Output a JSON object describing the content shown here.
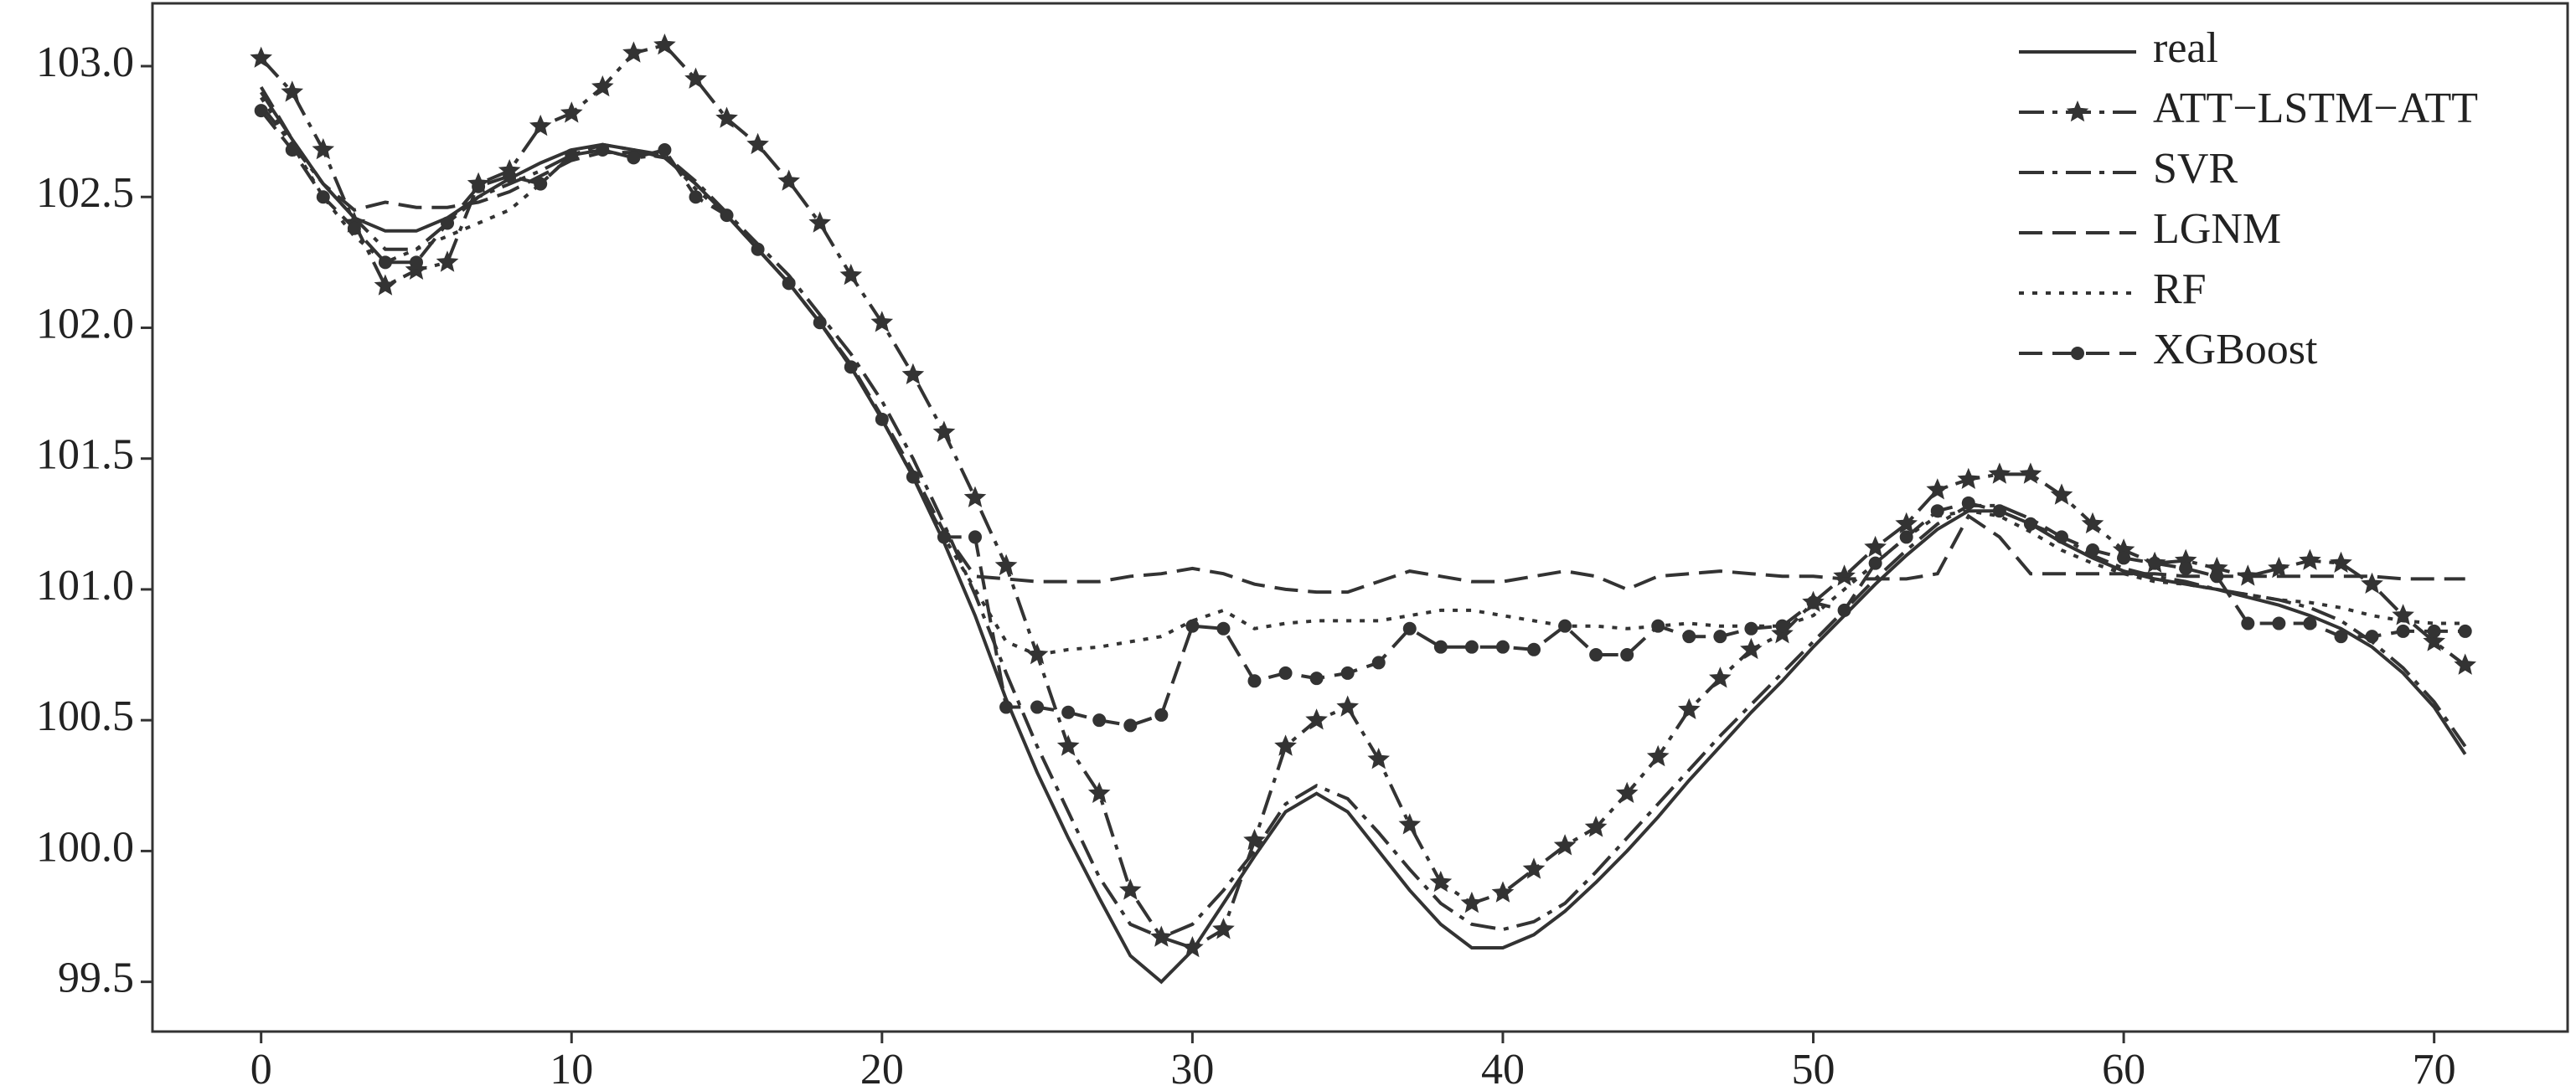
{
  "chart_data": {
    "type": "line",
    "x": [
      0,
      1,
      2,
      3,
      4,
      5,
      6,
      7,
      8,
      9,
      10,
      11,
      12,
      13,
      14,
      15,
      16,
      17,
      18,
      19,
      20,
      21,
      22,
      23,
      24,
      25,
      26,
      27,
      28,
      29,
      30,
      31,
      32,
      33,
      34,
      35,
      36,
      37,
      38,
      39,
      40,
      41,
      42,
      43,
      44,
      45,
      46,
      47,
      48,
      49,
      50,
      51,
      52,
      53,
      54,
      55,
      56,
      57,
      58,
      59,
      60,
      61,
      62,
      63,
      64,
      65,
      66,
      67,
      68,
      69,
      70,
      71
    ],
    "xlim": [
      -3.5,
      74.3
    ],
    "ylim": [
      99.31,
      103.24
    ],
    "xticks": [
      0,
      10,
      20,
      30,
      40,
      50,
      60,
      70
    ],
    "yticks": [
      99.5,
      {
        "value": 100,
        "label": "100.0"
      },
      100.5,
      {
        "value": 101,
        "label": "101.0"
      },
      101.5,
      {
        "value": 102,
        "label": "102.0"
      },
      102.5,
      {
        "value": 103,
        "label": "103.0"
      }
    ],
    "legend": "upper right",
    "series": [
      {
        "name": "real",
        "color": "#333333",
        "dash": "solid",
        "marker": "none",
        "values": [
          102.9,
          102.72,
          102.55,
          102.42,
          102.37,
          102.37,
          102.42,
          102.5,
          102.57,
          102.63,
          102.68,
          102.7,
          102.68,
          102.65,
          102.55,
          102.43,
          102.3,
          102.17,
          102.02,
          101.85,
          101.65,
          101.43,
          101.18,
          100.9,
          100.58,
          100.3,
          100.05,
          99.82,
          99.6,
          99.5,
          99.62,
          99.8,
          99.98,
          100.15,
          100.22,
          100.15,
          100.0,
          99.85,
          99.72,
          99.63,
          99.63,
          99.68,
          99.77,
          99.88,
          100.0,
          100.13,
          100.27,
          100.4,
          100.53,
          100.65,
          100.78,
          100.9,
          101.02,
          101.13,
          101.23,
          101.3,
          101.3,
          101.25,
          101.18,
          101.12,
          101.07,
          101.04,
          101.02,
          101.0,
          100.97,
          100.94,
          100.9,
          100.85,
          100.78,
          100.68,
          100.55,
          100.37
        ]
      },
      {
        "name": "ATT−LSTM−ATT",
        "color": "#333333",
        "dash": "dashdot",
        "marker": "star",
        "values": [
          103.03,
          102.9,
          102.68,
          102.4,
          102.16,
          102.22,
          102.25,
          102.55,
          102.6,
          102.77,
          102.82,
          102.92,
          103.05,
          103.08,
          102.95,
          102.8,
          102.7,
          102.56,
          102.4,
          102.2,
          102.02,
          101.82,
          101.6,
          101.35,
          101.09,
          100.75,
          100.4,
          100.22,
          99.85,
          99.67,
          99.63,
          99.7,
          100.04,
          100.4,
          100.5,
          100.55,
          100.35,
          100.1,
          99.88,
          99.8,
          99.84,
          99.93,
          100.02,
          100.09,
          100.22,
          100.36,
          100.54,
          100.66,
          100.77,
          100.83,
          100.95,
          101.05,
          101.16,
          101.25,
          101.38,
          101.42,
          101.44,
          101.44,
          101.36,
          101.25,
          101.15,
          101.1,
          101.11,
          101.08,
          101.05,
          101.08,
          101.11,
          101.1,
          101.02,
          100.9,
          100.8,
          100.71
        ]
      },
      {
        "name": "SVR",
        "color": "#333333",
        "dash": "dashdot",
        "marker": "none",
        "values": [
          102.85,
          102.7,
          102.55,
          102.42,
          102.3,
          102.3,
          102.4,
          102.5,
          102.55,
          102.6,
          102.66,
          102.7,
          102.68,
          102.66,
          102.56,
          102.44,
          102.32,
          102.2,
          102.05,
          101.9,
          101.72,
          101.5,
          101.25,
          100.98,
          100.68,
          100.4,
          100.15,
          99.9,
          99.72,
          99.67,
          99.72,
          99.85,
          100.0,
          100.18,
          100.25,
          100.2,
          100.07,
          99.93,
          99.8,
          99.72,
          99.7,
          99.73,
          99.8,
          99.92,
          100.05,
          100.18,
          100.31,
          100.44,
          100.56,
          100.68,
          100.8,
          100.92,
          101.04,
          101.15,
          101.25,
          101.32,
          101.32,
          101.27,
          101.2,
          101.13,
          101.08,
          101.05,
          101.03,
          101.0,
          100.98,
          100.96,
          100.93,
          100.88,
          100.8,
          100.7,
          100.57,
          100.4
        ]
      },
      {
        "name": "LGNM",
        "color": "#333333",
        "dash": "dashed",
        "marker": "none",
        "values": [
          102.92,
          102.72,
          102.55,
          102.45,
          102.48,
          102.46,
          102.46,
          102.48,
          102.52,
          102.58,
          102.64,
          102.67,
          102.67,
          102.65,
          102.55,
          102.43,
          102.3,
          102.17,
          102.02,
          101.86,
          101.66,
          101.45,
          101.22,
          101.05,
          101.04,
          101.03,
          101.03,
          101.03,
          101.05,
          101.06,
          101.08,
          101.06,
          101.02,
          101.0,
          100.99,
          100.99,
          101.03,
          101.07,
          101.05,
          101.03,
          101.03,
          101.05,
          101.07,
          101.05,
          101.0,
          101.05,
          101.06,
          101.07,
          101.06,
          101.05,
          101.05,
          101.04,
          101.04,
          101.04,
          101.06,
          101.28,
          101.2,
          101.06,
          101.06,
          101.06,
          101.06,
          101.06,
          101.05,
          101.05,
          101.05,
          101.05,
          101.05,
          101.05,
          101.05,
          101.04,
          101.04,
          101.04
        ]
      },
      {
        "name": "RF",
        "color": "#333333",
        "dash": "dotted",
        "marker": "none",
        "values": [
          102.88,
          102.7,
          102.5,
          102.35,
          102.25,
          102.3,
          102.35,
          102.4,
          102.45,
          102.55,
          102.66,
          102.68,
          102.65,
          102.66,
          102.53,
          102.43,
          102.3,
          102.17,
          102.02,
          101.85,
          101.65,
          101.43,
          101.2,
          101.0,
          100.8,
          100.75,
          100.77,
          100.78,
          100.8,
          100.82,
          100.88,
          100.92,
          100.85,
          100.87,
          100.88,
          100.88,
          100.88,
          100.9,
          100.92,
          100.92,
          100.9,
          100.88,
          100.86,
          100.86,
          100.85,
          100.86,
          100.87,
          100.86,
          100.86,
          100.86,
          100.9,
          101.0,
          101.1,
          101.2,
          101.28,
          101.3,
          101.28,
          101.22,
          101.15,
          101.1,
          101.06,
          101.03,
          101.02,
          101.0,
          100.98,
          100.96,
          100.95,
          100.93,
          100.9,
          100.88,
          100.87,
          100.87
        ]
      },
      {
        "name": "XGBoost",
        "color": "#333333",
        "dash": "dashed",
        "marker": "circle",
        "values": [
          102.83,
          102.68,
          102.5,
          102.38,
          102.25,
          102.25,
          102.4,
          102.54,
          102.58,
          102.55,
          102.66,
          102.68,
          102.65,
          102.68,
          102.5,
          102.43,
          102.3,
          102.17,
          102.02,
          101.85,
          101.65,
          101.43,
          101.2,
          101.2,
          100.55,
          100.55,
          100.53,
          100.5,
          100.48,
          100.52,
          100.86,
          100.85,
          100.65,
          100.68,
          100.66,
          100.68,
          100.72,
          100.85,
          100.78,
          100.78,
          100.78,
          100.77,
          100.86,
          100.75,
          100.75,
          100.86,
          100.82,
          100.82,
          100.85,
          100.86,
          100.95,
          100.92,
          101.1,
          101.2,
          101.3,
          101.33,
          101.3,
          101.25,
          101.2,
          101.15,
          101.12,
          101.1,
          101.08,
          101.05,
          100.87,
          100.87,
          100.87,
          100.82,
          100.82,
          100.84,
          100.84,
          100.84
        ]
      }
    ]
  }
}
